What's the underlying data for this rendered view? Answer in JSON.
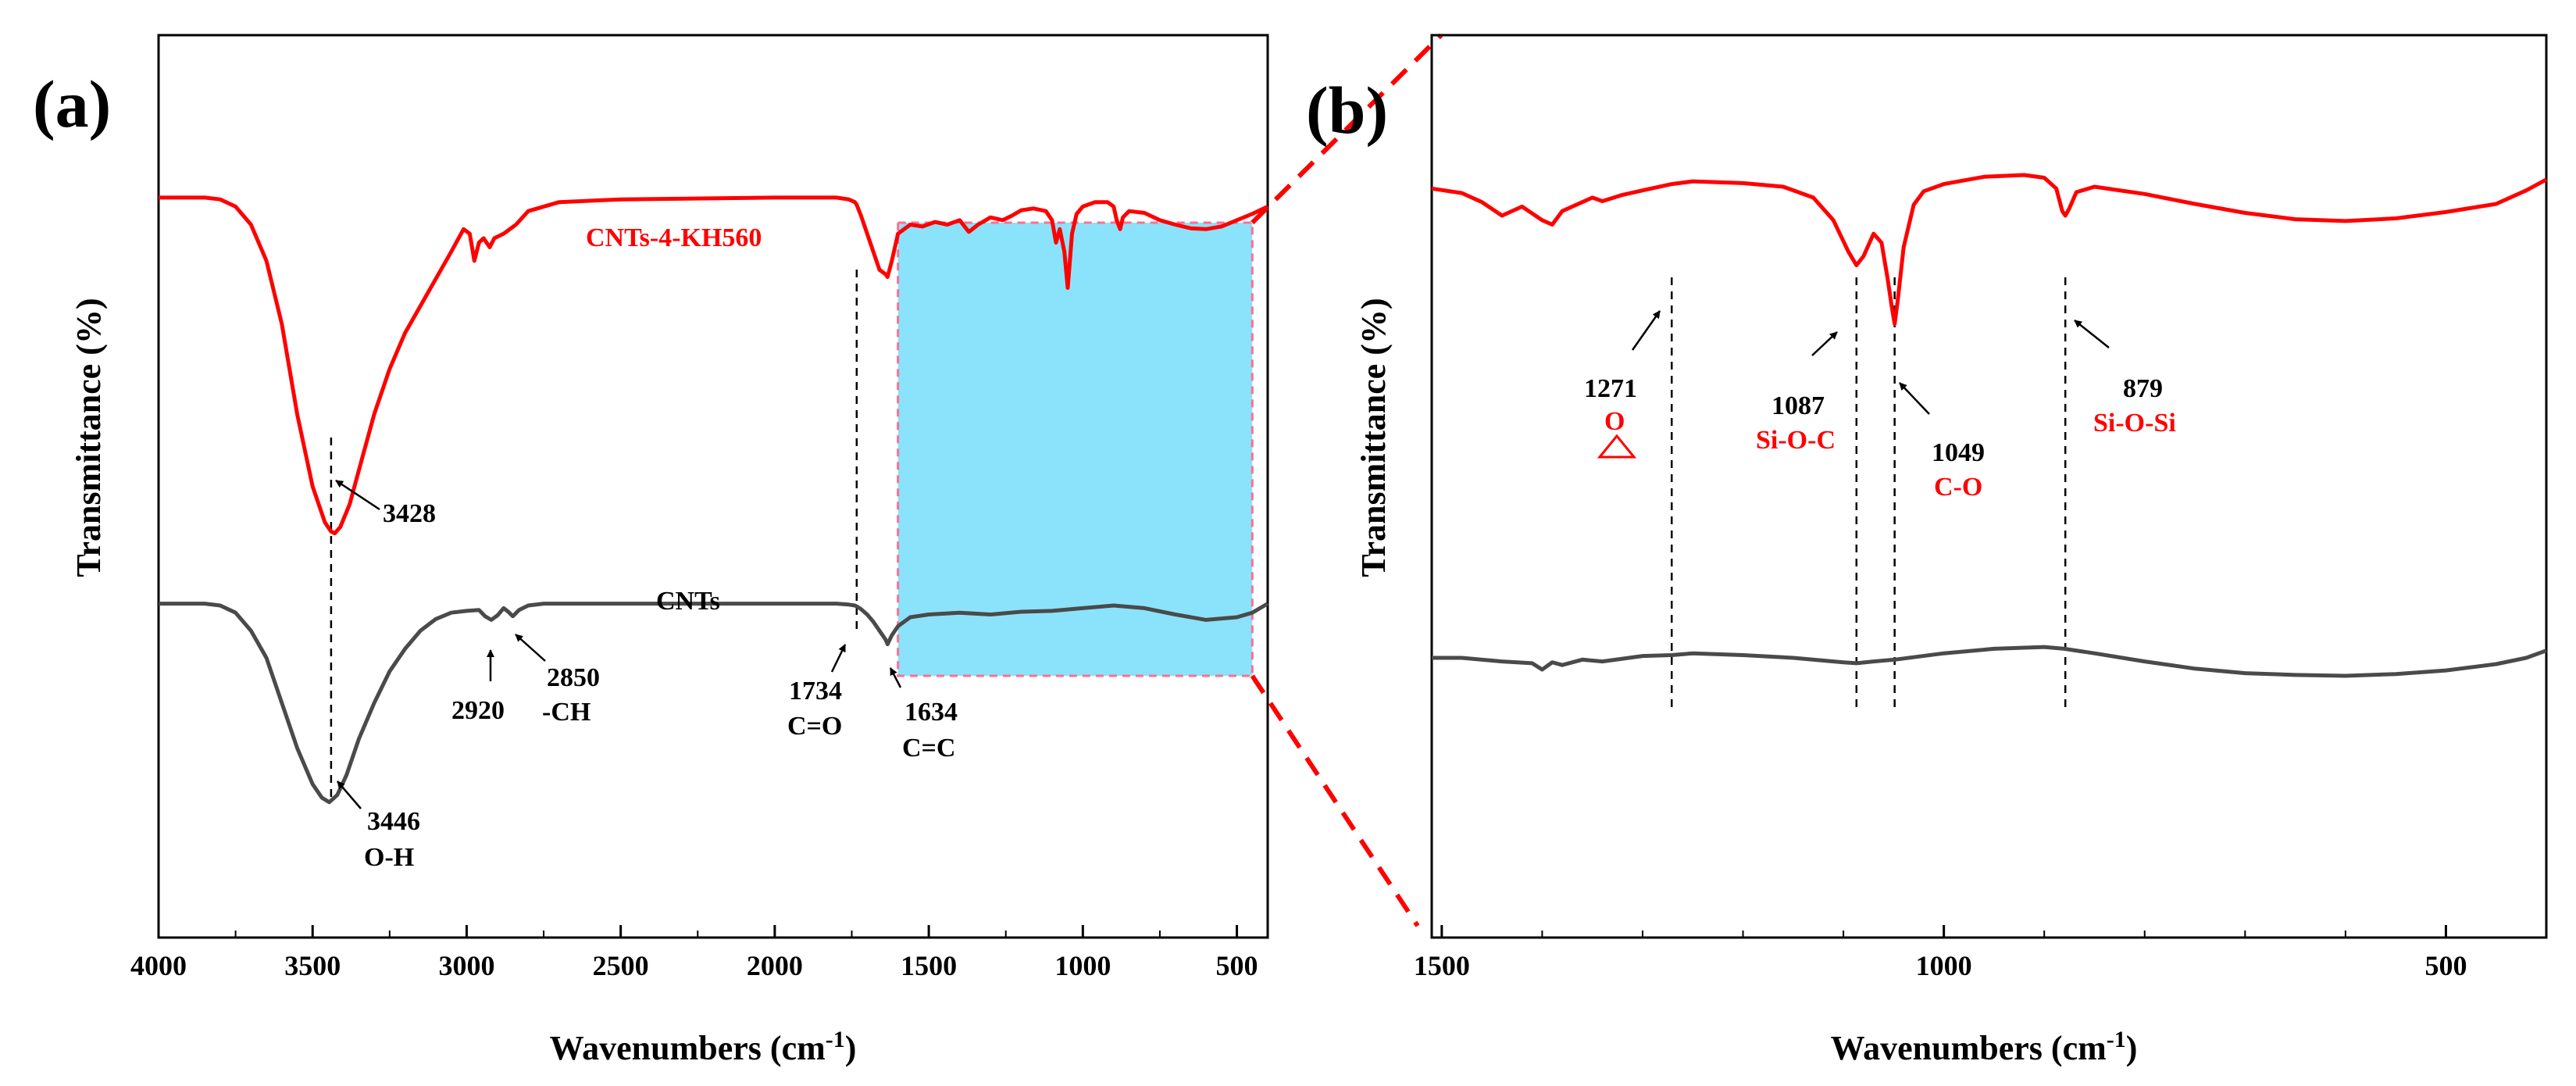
{
  "figure": {
    "panels": [
      {
        "label": "(a)"
      },
      {
        "label": "(b)"
      }
    ],
    "colors": {
      "red": "#ff0000",
      "gray": "#4a4a4a",
      "highlight": "#8be3fb",
      "highlight_border": "#ff6f8f"
    }
  },
  "chart_data": [
    {
      "id": "a",
      "type": "line",
      "title": "",
      "xlabel": "Wavenumbers (cm",
      "xlabel_sup": "-1",
      "xlabel_end": ")",
      "ylabel": "Transmittance (%)",
      "xlim": [
        4000,
        400
      ],
      "ylim": [
        0,
        100
      ],
      "xticks": [
        "4000",
        "3500",
        "3000",
        "2500",
        "2000",
        "1500",
        "1000",
        "500"
      ],
      "highlight_range": [
        1600,
        450
      ],
      "series": [
        {
          "name": "CNTs-4-KH560",
          "color": "#ff0000",
          "x": [
            4000,
            3850,
            3800,
            3750,
            3700,
            3650,
            3600,
            3550,
            3500,
            3460,
            3440,
            3428,
            3410,
            3380,
            3340,
            3300,
            3250,
            3200,
            3150,
            3100,
            3050,
            3010,
            2990,
            2975,
            2960,
            2945,
            2925,
            2910,
            2880,
            2860,
            2840,
            2800,
            2700,
            2500,
            2000,
            1900,
            1800,
            1760,
            1740,
            1734,
            1720,
            1700,
            1680,
            1660,
            1640,
            1634,
            1620,
            1600,
            1560,
            1520,
            1480,
            1440,
            1400,
            1370,
            1340,
            1300,
            1260,
            1230,
            1200,
            1160,
            1120,
            1100,
            1087,
            1075,
            1060,
            1049,
            1035,
            1020,
            1000,
            960,
            920,
            900,
            890,
            879,
            870,
            850,
            800,
            750,
            700,
            650,
            600,
            550,
            500,
            450,
            400
          ],
          "y": [
            82,
            82,
            81.8,
            81,
            79,
            75,
            68,
            58,
            50,
            46,
            45,
            44.8,
            45.5,
            48,
            53,
            58,
            63,
            67,
            70,
            73,
            76,
            78.5,
            78,
            75,
            77,
            77.5,
            76.5,
            77.5,
            78,
            78.5,
            79,
            80.5,
            81.5,
            81.8,
            82,
            82,
            82,
            81.8,
            81.5,
            81.2,
            80,
            78,
            76,
            74,
            73.5,
            73.2,
            75,
            78,
            79,
            78.8,
            79.3,
            79,
            79.5,
            78.2,
            79,
            79.8,
            79.5,
            80,
            80.6,
            80.8,
            80.5,
            79.5,
            77,
            78.5,
            76,
            72,
            78,
            80.2,
            81,
            81.5,
            81.5,
            81,
            79.5,
            78.5,
            79.8,
            80.5,
            80.3,
            79.5,
            79,
            78.6,
            78.5,
            78.8,
            79.5,
            80.2,
            81
          ]
        },
        {
          "name": "CNTs",
          "color": "#4a4a4a",
          "x": [
            4000,
            3850,
            3800,
            3750,
            3700,
            3650,
            3600,
            3550,
            3500,
            3470,
            3446,
            3420,
            3390,
            3350,
            3300,
            3250,
            3200,
            3150,
            3100,
            3050,
            3000,
            2960,
            2940,
            2920,
            2900,
            2880,
            2865,
            2850,
            2830,
            2800,
            2750,
            2700,
            2600,
            2500,
            2000,
            1800,
            1760,
            1740,
            1734,
            1720,
            1700,
            1680,
            1660,
            1640,
            1634,
            1620,
            1600,
            1560,
            1500,
            1400,
            1300,
            1200,
            1100,
            1000,
            900,
            800,
            700,
            600,
            500,
            450,
            400
          ],
          "y": [
            37,
            37,
            36.8,
            36,
            34,
            31,
            26,
            21,
            17,
            15.5,
            15,
            15.8,
            18,
            22,
            26,
            29.5,
            32,
            34,
            35.3,
            36,
            36.2,
            36.3,
            35.6,
            35.2,
            35.7,
            36.5,
            36.1,
            35.6,
            36.3,
            36.8,
            37,
            37,
            37,
            37,
            37,
            37,
            36.9,
            36.8,
            36.7,
            36.4,
            35.8,
            35,
            34,
            33,
            32.5,
            33.5,
            34.5,
            35.5,
            35.8,
            36,
            35.8,
            36.1,
            36.2,
            36.5,
            36.8,
            36.5,
            35.8,
            35.2,
            35.5,
            36,
            37
          ]
        }
      ],
      "annotations": [
        {
          "lines": [
            "CNTs-4-KH560"
          ],
          "color": "red"
        },
        {
          "lines": [
            "3428"
          ]
        },
        {
          "lines": [
            "CNTs"
          ]
        },
        {
          "lines": [
            "2920"
          ]
        },
        {
          "lines": [
            "2850",
            "-CH"
          ]
        },
        {
          "lines": [
            "1734",
            "C=O"
          ]
        },
        {
          "lines": [
            "1634",
            "C=C"
          ]
        },
        {
          "lines": [
            "3446",
            "O-H"
          ]
        }
      ]
    },
    {
      "id": "b",
      "type": "line",
      "title": "",
      "xlabel": "Wavenumbers (cm",
      "xlabel_sup": "-1",
      "xlabel_end": ")",
      "ylabel": "Transmittance (%)",
      "xlim": [
        1510,
        400
      ],
      "ylim": [
        0,
        100
      ],
      "xticks": [
        "1500",
        "1000",
        "500"
      ],
      "series": [
        {
          "name": "CNTs-4-KH560",
          "color": "#ff0000",
          "x": [
            1510,
            1480,
            1460,
            1440,
            1420,
            1400,
            1390,
            1380,
            1370,
            1360,
            1350,
            1340,
            1320,
            1300,
            1271,
            1250,
            1200,
            1160,
            1130,
            1110,
            1095,
            1087,
            1080,
            1070,
            1062,
            1056,
            1052,
            1049,
            1046,
            1040,
            1030,
            1020,
            1000,
            960,
            920,
            900,
            888,
            882,
            879,
            875,
            868,
            850,
            800,
            750,
            700,
            650,
            600,
            550,
            500,
            450,
            420,
            400
          ],
          "y": [
            83,
            82.5,
            81.5,
            80,
            81,
            79.5,
            79,
            80.5,
            81,
            81.5,
            82,
            81.6,
            82.3,
            82.8,
            83.5,
            83.8,
            83.6,
            83.2,
            82,
            79.5,
            76,
            74.5,
            75.5,
            78,
            77,
            73,
            70,
            68,
            70.5,
            76.5,
            81.2,
            82.7,
            83.5,
            84.3,
            84.5,
            84.2,
            83,
            80.5,
            80,
            80.8,
            82.6,
            83.2,
            82.4,
            81.3,
            80.3,
            79.6,
            79.4,
            79.7,
            80.4,
            81.3,
            82.8,
            84
          ]
        },
        {
          "name": "CNTs",
          "color": "#4a4a4a",
          "x": [
            1510,
            1480,
            1440,
            1410,
            1400,
            1390,
            1380,
            1360,
            1340,
            1300,
            1271,
            1250,
            1200,
            1150,
            1100,
            1087,
            1070,
            1049,
            1000,
            950,
            900,
            880,
            850,
            800,
            750,
            700,
            650,
            600,
            550,
            500,
            450,
            420,
            400
          ],
          "y": [
            31,
            31,
            30.6,
            30.4,
            29.7,
            30.5,
            30.2,
            30.8,
            30.6,
            31.2,
            31.3,
            31.5,
            31.3,
            31,
            30.5,
            30.4,
            30.6,
            30.8,
            31.5,
            32,
            32.2,
            32,
            31.5,
            30.6,
            29.8,
            29.3,
            29.1,
            29,
            29.2,
            29.6,
            30.3,
            31,
            31.8
          ]
        }
      ],
      "vlines": [
        1271,
        1087,
        1049,
        879
      ],
      "annotations": [
        {
          "lines": [
            "1271",
            "O"
          ],
          "color": "red-second"
        },
        {
          "lines": [
            "1087",
            "Si-O-C"
          ],
          "color": "red-second"
        },
        {
          "lines": [
            "1049",
            "C-O"
          ],
          "color": "red-second"
        },
        {
          "lines": [
            "879",
            "Si-O-Si"
          ],
          "color": "red-second"
        }
      ]
    }
  ]
}
